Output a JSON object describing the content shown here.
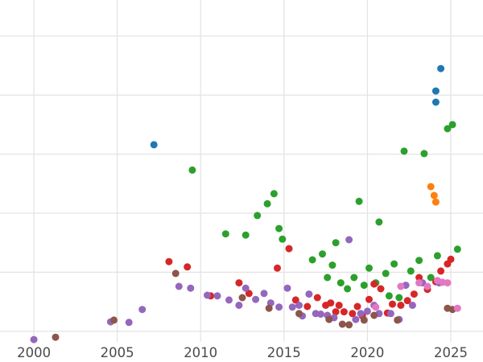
{
  "chart_data": {
    "type": "scatter",
    "title": "",
    "xlabel": "",
    "ylabel": "",
    "grid": true,
    "legend": "none",
    "y_axis_labels_visible": false,
    "x_ticks": [
      2000,
      2005,
      2010,
      2015,
      2020,
      2025
    ],
    "x_tick_labels": [
      "2000",
      "2005",
      "2010",
      "2015",
      "2020",
      "2025"
    ],
    "xlim": [
      1997.97,
      2026.93
    ],
    "ylim": [
      -0.52,
      5.61
    ],
    "y_gridlines": [
      0,
      1,
      2,
      3,
      4,
      5
    ],
    "colors": {
      "grid": "#e4e4e4",
      "tick_label": "#4a4a4a",
      "background": "#ffffff"
    },
    "point_radius": 4.5,
    "series": [
      {
        "name": "series-blue",
        "color": "#1f77b4",
        "points": [
          [
            2007.2,
            3.16
          ],
          [
            2024.1,
            4.07
          ],
          [
            2024.1,
            3.88
          ],
          [
            2024.4,
            4.45
          ]
        ]
      },
      {
        "name": "series-orange",
        "color": "#ff7f0e",
        "points": [
          [
            2023.8,
            2.45
          ],
          [
            2024.0,
            2.3
          ],
          [
            2024.1,
            2.19
          ]
        ]
      },
      {
        "name": "series-green",
        "color": "#2ca02c",
        "points": [
          [
            2009.5,
            2.73
          ],
          [
            2011.5,
            1.65
          ],
          [
            2012.7,
            1.63
          ],
          [
            2013.4,
            1.96
          ],
          [
            2014.0,
            2.16
          ],
          [
            2014.4,
            2.33
          ],
          [
            2014.7,
            1.74
          ],
          [
            2014.9,
            1.56
          ],
          [
            2016.7,
            1.21
          ],
          [
            2017.3,
            1.31
          ],
          [
            2017.6,
            0.91
          ],
          [
            2017.9,
            1.12
          ],
          [
            2018.1,
            1.5
          ],
          [
            2018.4,
            0.82
          ],
          [
            2018.8,
            0.72
          ],
          [
            2019.2,
            0.91
          ],
          [
            2019.5,
            2.2
          ],
          [
            2019.8,
            0.78
          ],
          [
            2020.1,
            1.07
          ],
          [
            2020.5,
            0.82
          ],
          [
            2020.7,
            1.85
          ],
          [
            2021.1,
            0.98
          ],
          [
            2021.3,
            0.6
          ],
          [
            2021.6,
            1.14
          ],
          [
            2021.9,
            0.57
          ],
          [
            2022.2,
            3.05
          ],
          [
            2022.6,
            1.02
          ],
          [
            2023.1,
            1.2
          ],
          [
            2023.4,
            3.01
          ],
          [
            2023.8,
            0.91
          ],
          [
            2024.2,
            1.28
          ],
          [
            2024.8,
            3.43
          ],
          [
            2025.1,
            3.5
          ],
          [
            2025.4,
            1.39
          ]
        ]
      },
      {
        "name": "series-red",
        "color": "#d62728",
        "points": [
          [
            2008.1,
            1.18
          ],
          [
            2009.2,
            1.09
          ],
          [
            2010.6,
            0.6
          ],
          [
            2012.3,
            0.82
          ],
          [
            2012.9,
            0.64
          ],
          [
            2014.6,
            1.07
          ],
          [
            2015.3,
            1.4
          ],
          [
            2015.7,
            0.53
          ],
          [
            2016.4,
            0.42
          ],
          [
            2017.0,
            0.57
          ],
          [
            2017.5,
            0.44
          ],
          [
            2017.8,
            0.48
          ],
          [
            2018.1,
            0.33
          ],
          [
            2018.3,
            0.44
          ],
          [
            2018.6,
            0.33
          ],
          [
            2019.1,
            0.3
          ],
          [
            2019.4,
            0.42
          ],
          [
            2019.7,
            0.26
          ],
          [
            2020.1,
            0.54
          ],
          [
            2020.4,
            0.8
          ],
          [
            2020.8,
            0.72
          ],
          [
            2021.2,
            0.31
          ],
          [
            2021.5,
            0.46
          ],
          [
            2022.0,
            0.44
          ],
          [
            2022.4,
            0.52
          ],
          [
            2022.8,
            0.63
          ],
          [
            2023.1,
            0.91
          ],
          [
            2023.6,
            0.71
          ],
          [
            2024.1,
            0.84
          ],
          [
            2024.4,
            1.02
          ],
          [
            2024.8,
            1.14
          ],
          [
            2025.0,
            1.22
          ]
        ]
      },
      {
        "name": "series-purple",
        "color": "#9467bd",
        "points": [
          [
            2000.0,
            -0.14
          ],
          [
            2004.6,
            0.16
          ],
          [
            2005.7,
            0.15
          ],
          [
            2006.5,
            0.37
          ],
          [
            2008.7,
            0.76
          ],
          [
            2009.4,
            0.73
          ],
          [
            2010.4,
            0.61
          ],
          [
            2011.0,
            0.6
          ],
          [
            2011.7,
            0.53
          ],
          [
            2012.3,
            0.44
          ],
          [
            2012.7,
            0.73
          ],
          [
            2013.3,
            0.54
          ],
          [
            2013.8,
            0.64
          ],
          [
            2014.2,
            0.48
          ],
          [
            2014.7,
            0.41
          ],
          [
            2015.2,
            0.73
          ],
          [
            2015.5,
            0.41
          ],
          [
            2015.9,
            0.44
          ],
          [
            2016.1,
            0.26
          ],
          [
            2016.5,
            0.63
          ],
          [
            2016.9,
            0.3
          ],
          [
            2017.2,
            0.29
          ],
          [
            2017.6,
            0.27
          ],
          [
            2018.0,
            0.23
          ],
          [
            2018.9,
            1.55
          ],
          [
            2019.3,
            0.2
          ],
          [
            2019.6,
            0.3
          ],
          [
            2020.0,
            0.34
          ],
          [
            2020.4,
            0.44
          ],
          [
            2020.7,
            0.3
          ],
          [
            2021.4,
            0.3
          ],
          [
            2021.9,
            0.2
          ],
          [
            2022.3,
            0.78
          ],
          [
            2022.7,
            0.44
          ],
          [
            2023.3,
            0.82
          ],
          [
            2024.3,
            0.82
          ]
        ]
      },
      {
        "name": "series-brown",
        "color": "#8c564b",
        "points": [
          [
            2001.3,
            -0.1
          ],
          [
            2004.8,
            0.19
          ],
          [
            2008.5,
            0.98
          ],
          [
            2012.5,
            0.57
          ],
          [
            2014.1,
            0.39
          ],
          [
            2015.9,
            0.3
          ],
          [
            2017.7,
            0.2
          ],
          [
            2018.5,
            0.12
          ],
          [
            2018.9,
            0.11
          ],
          [
            2019.8,
            0.19
          ],
          [
            2020.4,
            0.27
          ],
          [
            2021.8,
            0.19
          ],
          [
            2024.8,
            0.39
          ],
          [
            2025.1,
            0.37
          ]
        ]
      },
      {
        "name": "series-pink",
        "color": "#e377c2",
        "points": [
          [
            2020.5,
            0.41
          ],
          [
            2022.0,
            0.76
          ],
          [
            2023.1,
            0.82
          ],
          [
            2023.6,
            0.76
          ],
          [
            2024.2,
            0.86
          ],
          [
            2024.5,
            0.83
          ],
          [
            2024.8,
            0.82
          ],
          [
            2025.4,
            0.39
          ]
        ]
      }
    ]
  }
}
